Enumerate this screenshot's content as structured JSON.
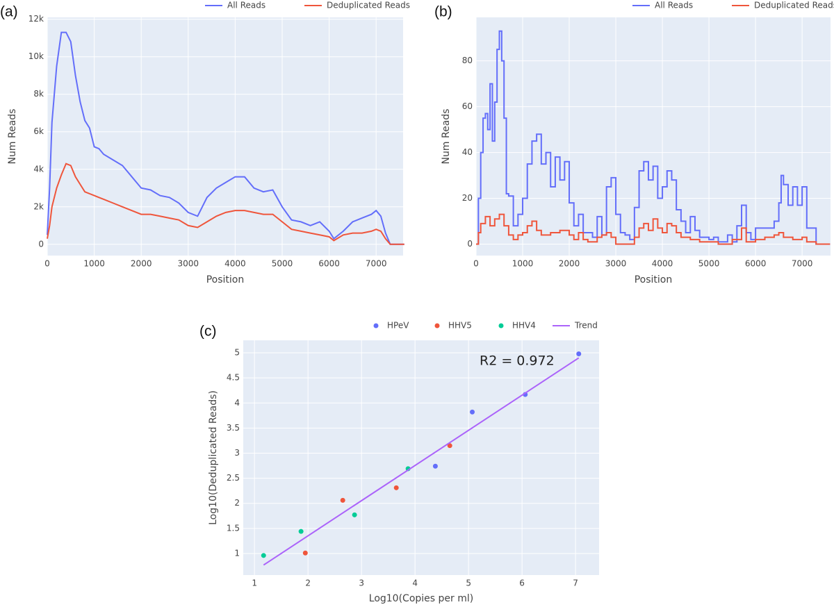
{
  "chart_data": [
    {
      "type": "line",
      "panel_label": "(a)",
      "line_shape": "linear",
      "x_label": "Position",
      "y_label": "Num Reads",
      "xlim": [
        0,
        7574
      ],
      "ylim": [
        -600,
        12100
      ],
      "grid": true,
      "xticks": [
        0,
        1000,
        2000,
        3000,
        4000,
        5000,
        6000,
        7000
      ],
      "yticks": [
        0,
        {
          "value": 2000,
          "label": "2k"
        },
        {
          "value": 4000,
          "label": "4k"
        },
        {
          "value": 6000,
          "label": "6k"
        },
        {
          "value": 8000,
          "label": "8k"
        },
        {
          "value": 10000,
          "label": "10k"
        },
        {
          "value": 12000,
          "label": "12k"
        }
      ],
      "series": [
        {
          "name": "All Reads",
          "color": "#636efa",
          "x": [
            0,
            50,
            100,
            200,
            300,
            400,
            500,
            600,
            700,
            800,
            900,
            1000,
            1100,
            1200,
            1400,
            1600,
            1800,
            2000,
            2200,
            2400,
            2600,
            2800,
            3000,
            3200,
            3400,
            3600,
            3800,
            4000,
            4200,
            4400,
            4600,
            4800,
            5000,
            5200,
            5400,
            5600,
            5800,
            6000,
            6100,
            6300,
            6500,
            6700,
            6900,
            7000,
            7100,
            7200,
            7300,
            7600
          ],
          "values": [
            500,
            3000,
            6500,
            9500,
            11300,
            11300,
            10800,
            9000,
            7600,
            6600,
            6200,
            5200,
            5100,
            4800,
            4500,
            4200,
            3600,
            3000,
            2900,
            2600,
            2500,
            2200,
            1700,
            1500,
            2500,
            3000,
            3300,
            3600,
            3600,
            3000,
            2800,
            2900,
            2000,
            1300,
            1200,
            1000,
            1200,
            700,
            300,
            700,
            1200,
            1400,
            1600,
            1800,
            1500,
            600,
            0,
            0
          ]
        },
        {
          "name": "Deduplicated Reads",
          "color": "#ef553b",
          "x": [
            0,
            50,
            100,
            200,
            300,
            400,
            500,
            600,
            700,
            800,
            900,
            1000,
            1100,
            1200,
            1400,
            1600,
            1800,
            2000,
            2200,
            2400,
            2600,
            2800,
            3000,
            3200,
            3400,
            3600,
            3800,
            4000,
            4200,
            4400,
            4600,
            4800,
            5000,
            5200,
            5400,
            5600,
            5800,
            6000,
            6100,
            6300,
            6500,
            6700,
            6900,
            7000,
            7100,
            7200,
            7300,
            7600
          ],
          "values": [
            300,
            1000,
            2000,
            3000,
            3700,
            4300,
            4200,
            3600,
            3200,
            2800,
            2700,
            2600,
            2500,
            2400,
            2200,
            2000,
            1800,
            1600,
            1600,
            1500,
            1400,
            1300,
            1000,
            900,
            1200,
            1500,
            1700,
            1800,
            1800,
            1700,
            1600,
            1600,
            1200,
            800,
            700,
            600,
            500,
            400,
            200,
            500,
            600,
            600,
            700,
            800,
            700,
            300,
            0,
            0
          ]
        }
      ]
    },
    {
      "type": "line",
      "panel_label": "(b)",
      "line_shape": "hv",
      "x_label": "Position",
      "y_label": "Num Reads",
      "xlim": [
        0,
        7610
      ],
      "ylim": [
        -5,
        99
      ],
      "grid": true,
      "xticks": [
        0,
        1000,
        2000,
        3000,
        4000,
        5000,
        6000,
        7000
      ],
      "yticks": [
        0,
        20,
        40,
        60,
        80
      ],
      "series": [
        {
          "name": "All Reads",
          "color": "#636efa",
          "x": [
            0,
            50,
            100,
            150,
            200,
            250,
            300,
            350,
            400,
            450,
            500,
            550,
            600,
            650,
            700,
            800,
            900,
            1000,
            1100,
            1200,
            1300,
            1400,
            1500,
            1600,
            1700,
            1800,
            1900,
            2000,
            2100,
            2200,
            2300,
            2500,
            2600,
            2700,
            2800,
            2900,
            3000,
            3100,
            3200,
            3300,
            3400,
            3500,
            3600,
            3700,
            3800,
            3900,
            4000,
            4100,
            4200,
            4300,
            4400,
            4500,
            4600,
            4700,
            4800,
            5000,
            5100,
            5200,
            5400,
            5500,
            5600,
            5700,
            5800,
            5900,
            6000,
            6200,
            6400,
            6500,
            6550,
            6600,
            6700,
            6800,
            6900,
            7000,
            7100,
            7300,
            7600
          ],
          "values": [
            0,
            20,
            40,
            55,
            57,
            50,
            70,
            45,
            62,
            85,
            93,
            80,
            55,
            22,
            21,
            8,
            13,
            20,
            35,
            45,
            48,
            35,
            40,
            25,
            38,
            28,
            36,
            18,
            8,
            13,
            5,
            3,
            12,
            4,
            25,
            29,
            13,
            5,
            4,
            2,
            16,
            32,
            36,
            28,
            34,
            20,
            25,
            32,
            28,
            15,
            10,
            5,
            12,
            6,
            3,
            2,
            3,
            1,
            4,
            1,
            8,
            17,
            5,
            2,
            7,
            7,
            10,
            18,
            30,
            26,
            17,
            25,
            17,
            25,
            7,
            0,
            0
          ]
        },
        {
          "name": "Deduplicated Reads",
          "color": "#ef553b",
          "x": [
            0,
            50,
            100,
            200,
            300,
            400,
            500,
            600,
            700,
            800,
            900,
            1000,
            1100,
            1200,
            1300,
            1400,
            1600,
            1800,
            2000,
            2100,
            2200,
            2300,
            2400,
            2600,
            2700,
            2800,
            2900,
            3000,
            3300,
            3400,
            3500,
            3600,
            3700,
            3800,
            3900,
            4000,
            4100,
            4200,
            4300,
            4400,
            4600,
            4800,
            5000,
            5200,
            5500,
            5700,
            5800,
            6000,
            6200,
            6400,
            6500,
            6600,
            6800,
            7000,
            7100,
            7300,
            7600
          ],
          "values": [
            0,
            5,
            9,
            12,
            8,
            11,
            13,
            8,
            4,
            2,
            4,
            5,
            8,
            10,
            6,
            4,
            5,
            6,
            4,
            2,
            5,
            2,
            1,
            3,
            4,
            5,
            3,
            0,
            0,
            3,
            7,
            9,
            6,
            11,
            7,
            5,
            9,
            8,
            5,
            3,
            2,
            1,
            1,
            0,
            2,
            7,
            1,
            2,
            3,
            4,
            5,
            3,
            2,
            3,
            1,
            0,
            0
          ]
        }
      ]
    },
    {
      "type": "scatter",
      "panel_label": "(c)",
      "x_label": "Log10(Copies per ml)",
      "y_label": "Log10(Deduplicated Reads)",
      "annotation": "R2 = 0.972",
      "xlim": [
        0.79,
        7.44
      ],
      "ylim": [
        0.57,
        5.25
      ],
      "grid": true,
      "xticks": [
        1,
        2,
        3,
        4,
        5,
        6,
        7
      ],
      "yticks": [
        1,
        1.5,
        2,
        2.5,
        3,
        3.5,
        4,
        4.5,
        5
      ],
      "series": [
        {
          "name": "HPeV",
          "color": "#636efa",
          "mode": "markers",
          "x": [
            4.38,
            5.07,
            6.06,
            7.06
          ],
          "values": [
            2.74,
            3.82,
            4.17,
            4.98
          ]
        },
        {
          "name": "HHV5",
          "color": "#ef553b",
          "mode": "markers",
          "x": [
            1.95,
            2.65,
            3.65,
            4.65
          ],
          "values": [
            1.01,
            2.06,
            2.31,
            3.15
          ]
        },
        {
          "name": "HHV4",
          "color": "#00cc96",
          "mode": "markers",
          "x": [
            1.17,
            1.87,
            2.87,
            3.87
          ],
          "values": [
            0.96,
            1.44,
            1.77,
            2.69
          ]
        },
        {
          "name": "Trend",
          "color": "#ab63fa",
          "mode": "lines",
          "x": [
            1.17,
            7.06
          ],
          "values": [
            0.77,
            4.9
          ]
        }
      ]
    }
  ]
}
